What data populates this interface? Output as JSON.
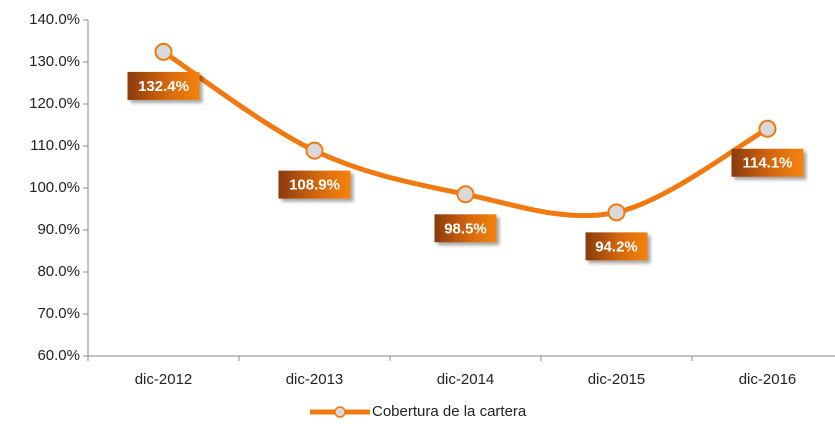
{
  "chart_data": {
    "type": "line",
    "categories": [
      "dic-2012",
      "dic-2013",
      "dic-2014",
      "dic-2015",
      "dic-2016"
    ],
    "series": [
      {
        "name": "Cobertura de la cartera",
        "color": "#f07a10",
        "marker_color": "#d9d9d9",
        "values": [
          132.4,
          108.9,
          98.5,
          94.2,
          114.1
        ],
        "value_labels": [
          "132.4%",
          "108.9%",
          "98.5%",
          "94.2%",
          "114.1%"
        ]
      }
    ],
    "ylim": [
      60,
      140
    ],
    "yticks": [
      {
        "value": 60,
        "label": "60.0%"
      },
      {
        "value": 70,
        "label": "70.0%"
      },
      {
        "value": 80,
        "label": "80.0%"
      },
      {
        "value": 90,
        "label": "90.0%"
      },
      {
        "value": 100,
        "label": "100.0%"
      },
      {
        "value": 110,
        "label": "110.0%"
      },
      {
        "value": 120,
        "label": "120.0%"
      },
      {
        "value": 130,
        "label": "130.0%"
      },
      {
        "value": 140,
        "label": "140.0%"
      }
    ],
    "smooth": true,
    "grid": false,
    "legend": "bottom"
  }
}
